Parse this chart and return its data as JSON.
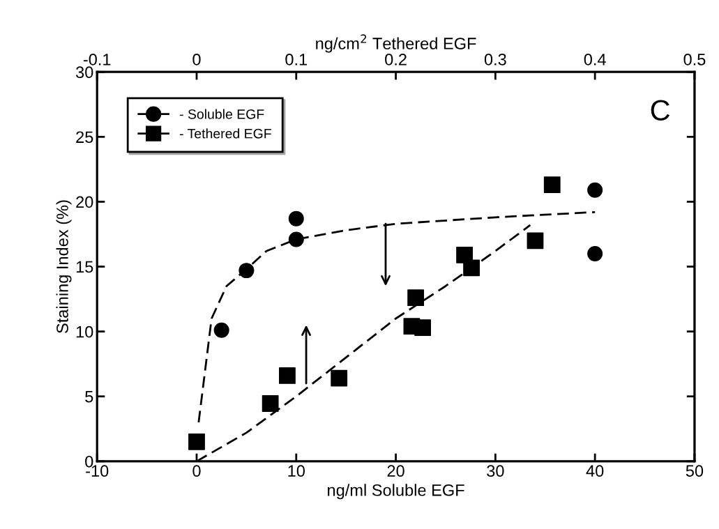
{
  "chart_data": {
    "type": "scatter",
    "xlabel": "ng/ml Soluble EGF",
    "ylabel": "Staining Index (%)",
    "x2label": "ng/cm$^{2}$ Tethered EGF",
    "xlim": [
      -10,
      50
    ],
    "xticks": [
      -10,
      0,
      10,
      20,
      30,
      40,
      50
    ],
    "x2lim": [
      -0.1,
      0.5
    ],
    "x2ticks": [
      {
        "value": -0.1,
        "label": "-0.1"
      },
      0,
      0.1,
      0.2,
      0.3,
      0.4,
      0.5
    ],
    "ylim": [
      0,
      30
    ],
    "yticks": [
      0,
      5,
      10,
      15,
      20,
      25,
      30
    ],
    "grid": false,
    "legend": "top left",
    "annotations": [
      "C"
    ],
    "series": [
      {
        "name": "- Soluble EGF",
        "marker": "circle",
        "color": "#000000",
        "x": [
          2.5,
          5,
          10,
          10,
          40,
          40
        ],
        "values": [
          10.1,
          14.7,
          18.7,
          17.1,
          20.9,
          16.0
        ]
      },
      {
        "name": "- Tethered EGF",
        "marker": "square",
        "axis": "x2",
        "color": "#000000",
        "x": [
          0,
          0.074,
          0.091,
          0.143,
          0.22,
          0.216,
          0.227,
          0.269,
          0.276,
          0.34,
          0.357
        ],
        "values": [
          1.5,
          4.45,
          6.6,
          6.4,
          12.6,
          10.4,
          10.3,
          15.9,
          14.9,
          17.0,
          21.3
        ]
      },
      {
        "type": "line",
        "line_style": "dashed",
        "marker": "none",
        "color": "#000000",
        "x": [
          0.2,
          1.5,
          3,
          5,
          7,
          10,
          15,
          20,
          30,
          40
        ],
        "values": [
          3,
          11,
          13.5,
          14.8,
          16.2,
          17.1,
          17.8,
          18.3,
          18.8,
          19.2
        ]
      },
      {
        "type": "line",
        "line_style": "dashed",
        "marker": "none",
        "axis": "x2",
        "color": "#000000",
        "x": [
          0,
          0.05,
          0.1,
          0.15,
          0.2,
          0.25,
          0.3,
          0.335
        ],
        "values": [
          0,
          2.2,
          5,
          8,
          11,
          13.5,
          16.2,
          18.2
        ]
      }
    ]
  }
}
